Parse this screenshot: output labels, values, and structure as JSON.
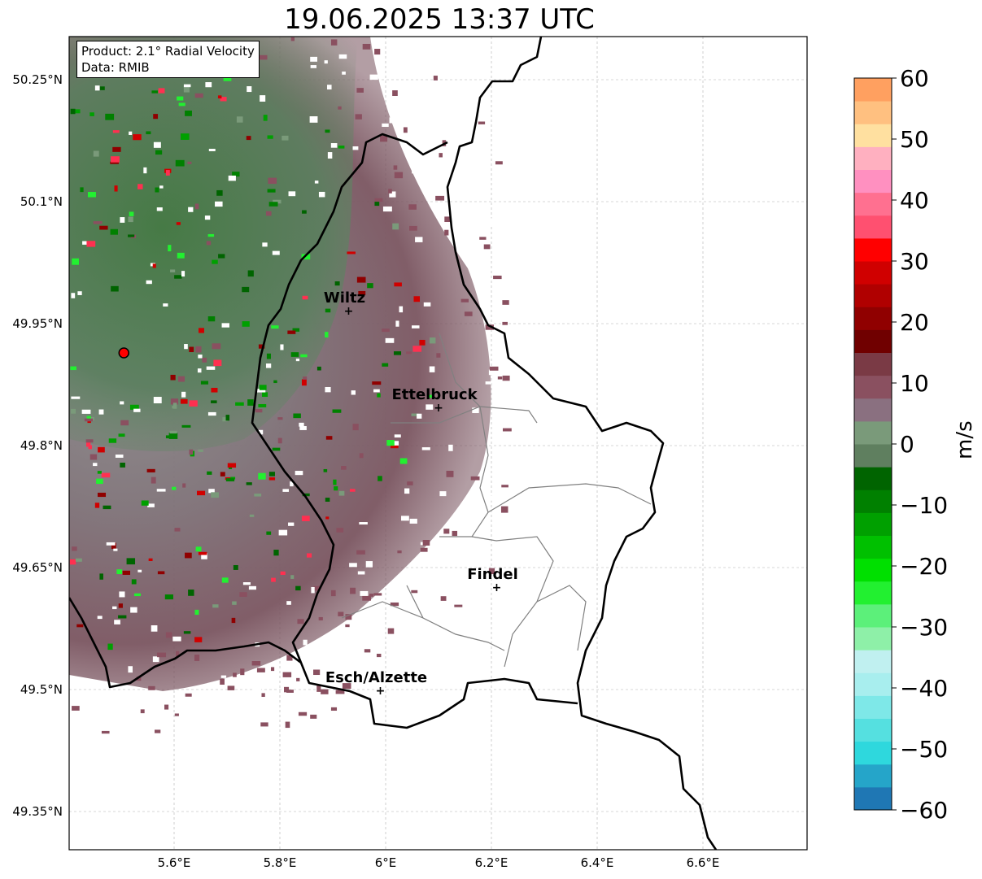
{
  "title": "19.06.2025 13:37 UTC",
  "info": {
    "product": "Product: 2.1° Radial Velocity",
    "data": "Data: RMIB"
  },
  "colorbar": {
    "unit": "m/s",
    "min": -60,
    "max": 60,
    "ticks": [
      "−60",
      "−50",
      "−40",
      "−30",
      "−20",
      "−10",
      "0",
      "10",
      "20",
      "30",
      "40",
      "50",
      "60"
    ],
    "colors": [
      "#1f77b4",
      "#25a5c9",
      "#2ed8dd",
      "#55e0e0",
      "#7ee8e8",
      "#a8eeee",
      "#c0f0f0",
      "#8ef0a8",
      "#5cf07a",
      "#22f030",
      "#00e000",
      "#00c000",
      "#00a000",
      "#008000",
      "#006400",
      "#5f7f5f",
      "#7a9a7a",
      "#8a7080",
      "#8a5060",
      "#7a3a45",
      "#700000",
      "#900000",
      "#b00000",
      "#d00000",
      "#ff0000",
      "#ff5070",
      "#ff7090",
      "#ff90c0",
      "#ffb0c0",
      "#ffe0a0",
      "#ffc080",
      "#ffa060"
    ]
  },
  "axes": {
    "lon_ticks": [
      "5.6°E",
      "5.8°E",
      "6°E",
      "6.2°E",
      "6.4°E",
      "6.6°E"
    ],
    "lat_ticks": [
      "50.25°N",
      "50.1°N",
      "49.95°N",
      "49.8°N",
      "49.65°N",
      "49.5°N",
      "49.35°N"
    ]
  },
  "cities": [
    {
      "name": "Wiltz",
      "lon": 5.93,
      "lat": 49.966
    },
    {
      "name": "Ettelbruck",
      "lon": 6.1,
      "lat": 49.847
    },
    {
      "name": "Findel",
      "lon": 6.21,
      "lat": 49.626
    },
    {
      "name": "Esch/Alzette",
      "lon": 5.99,
      "lat": 49.499
    }
  ],
  "radar_site": {
    "lon": 5.505,
    "lat": 49.914
  }
}
